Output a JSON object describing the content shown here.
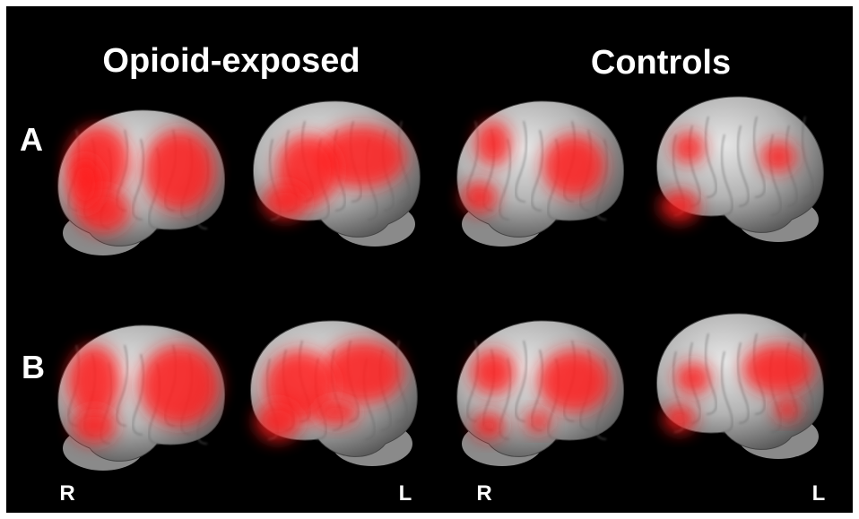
{
  "header": {
    "titles": [
      "Opioid-exposed",
      "Controls"
    ]
  },
  "rows": [
    {
      "label": "A"
    },
    {
      "label": "B"
    }
  ],
  "orientation_labels": [
    "R",
    "L",
    "R",
    "L"
  ]
}
